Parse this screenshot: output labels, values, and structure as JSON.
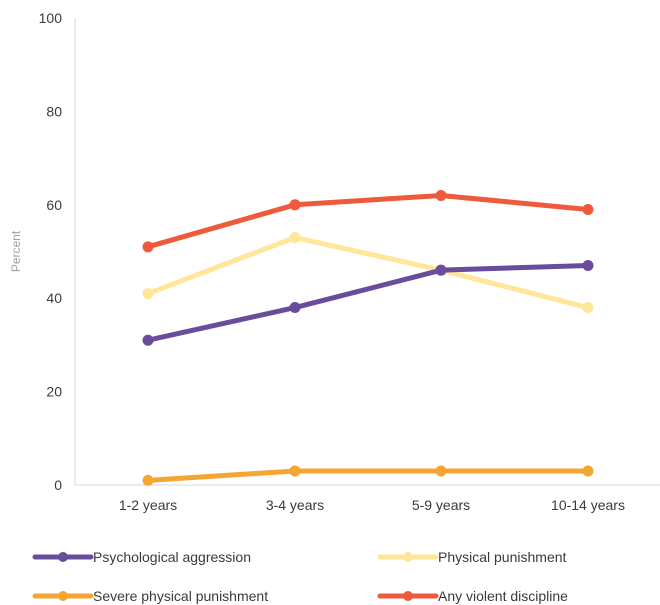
{
  "chart_data": {
    "type": "line",
    "ylabel": "Percent",
    "xlabel": "",
    "title": "",
    "ylim": [
      0,
      100
    ],
    "yticks": [
      0,
      20,
      40,
      60,
      80,
      100
    ],
    "grid": false,
    "legend_position": "bottom",
    "categories": [
      "1-2 years",
      "3-4 years",
      "5-9 years",
      "10-14 years"
    ],
    "series": [
      {
        "name": "Psychological aggression",
        "color": "#6A4C9C",
        "values": [
          31,
          38,
          46,
          47
        ]
      },
      {
        "name": "Physical punishment",
        "color": "#FFE699",
        "values": [
          41,
          53,
          46,
          38
        ]
      },
      {
        "name": "Severe physical punishment",
        "color": "#F5A531",
        "values": [
          1,
          3,
          3,
          3
        ]
      },
      {
        "name": "Any violent discipline",
        "color": "#EE5A3B",
        "values": [
          51,
          60,
          62,
          59
        ]
      }
    ]
  }
}
